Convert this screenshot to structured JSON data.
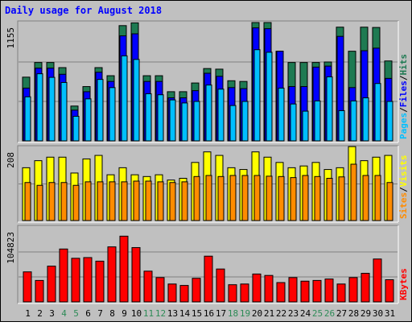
{
  "chart_data": {
    "type": "bar",
    "title": "Daily usage for August 2018",
    "colors": {
      "background": "#c0c0c0",
      "title": "#0000ff",
      "hits": "#1e7a52",
      "files": "#0000ff",
      "pages": "#00bfff",
      "visits": "#ffff00",
      "sites": "#ff8c00",
      "kbytes": "#ff0000",
      "weekend_label": "#2e8b57"
    },
    "categories": [
      "1",
      "2",
      "3",
      "4",
      "5",
      "6",
      "7",
      "8",
      "9",
      "10",
      "11",
      "12",
      "13",
      "14",
      "15",
      "16",
      "17",
      "18",
      "19",
      "20",
      "21",
      "22",
      "23",
      "24",
      "25",
      "26",
      "27",
      "28",
      "29",
      "30",
      "31"
    ],
    "weekend_days": [
      "4",
      "5",
      "11",
      "12",
      "18",
      "19",
      "25",
      "26"
    ],
    "panels": [
      {
        "name": "hits-files-pages",
        "max_label": "1155",
        "ylim": [
          0,
          1155
        ],
        "legend": [
          "Pages",
          "/",
          "Files",
          "/",
          "Hits"
        ],
        "series": [
          {
            "name": "Hits",
            "values": [
              622,
              765,
              765,
              715,
              340,
              530,
              715,
              636,
              1125,
              1152,
              636,
              636,
              480,
              480,
              565,
              706,
              700,
              587,
              580,
              1155,
              1155,
              875,
              765,
              765,
              765,
              770,
              1110,
              875,
              1110,
              1107,
              780
            ]
          },
          {
            "name": "Files",
            "values": [
              515,
              710,
              710,
              650,
              300,
              480,
              670,
              580,
              1025,
              1045,
              580,
              580,
              420,
              420,
              490,
              660,
              630,
              520,
              510,
              1103,
              1095,
              875,
              530,
              530,
              720,
              730,
              1020,
              520,
              880,
              905,
              610
            ]
          },
          {
            "name": "Pages",
            "values": [
              430,
              655,
              620,
              570,
              240,
              410,
              600,
              520,
              830,
              795,
              460,
              450,
              400,
              370,
              385,
              545,
              505,
              345,
              385,
              890,
              865,
              515,
              360,
              290,
              390,
              625,
              295,
              390,
              420,
              560,
              385
            ]
          }
        ]
      },
      {
        "name": "visits-sites",
        "max_label": "208",
        "ylim": [
          0,
          208
        ],
        "legend": [
          "Sites",
          "/",
          "Visits"
        ],
        "series": [
          {
            "name": "Visits",
            "values": [
              150,
              170,
              180,
              180,
              135,
              175,
              185,
              130,
              150,
              130,
              125,
              130,
              115,
              120,
              165,
              195,
              185,
              150,
              145,
              195,
              180,
              165,
              150,
              155,
              165,
              145,
              150,
              210,
              170,
              180,
              185
            ]
          },
          {
            "name": "Sites",
            "values": [
              108,
              100,
              108,
              108,
              100,
              110,
              110,
              110,
              110,
              112,
              112,
              110,
              108,
              110,
              125,
              128,
              125,
              128,
              128,
              128,
              126,
              125,
              122,
              128,
              125,
              120,
              124,
              160,
              128,
              128,
              108
            ]
          }
        ]
      },
      {
        "name": "kbytes",
        "max_label": "104823",
        "ylim": [
          0,
          104823
        ],
        "legend": [
          "KBytes"
        ],
        "series": [
          {
            "name": "KBytes",
            "values": [
              42000,
              30000,
              50000,
              74000,
              61000,
              62000,
              57000,
              77000,
              92000,
              76000,
              43000,
              34000,
              25000,
              23000,
              33000,
              64000,
              46000,
              24000,
              25000,
              39000,
              37000,
              27000,
              34000,
              29000,
              30000,
              32000,
              25000,
              34000,
              40000,
              60000,
              31000
            ]
          }
        ]
      }
    ]
  }
}
